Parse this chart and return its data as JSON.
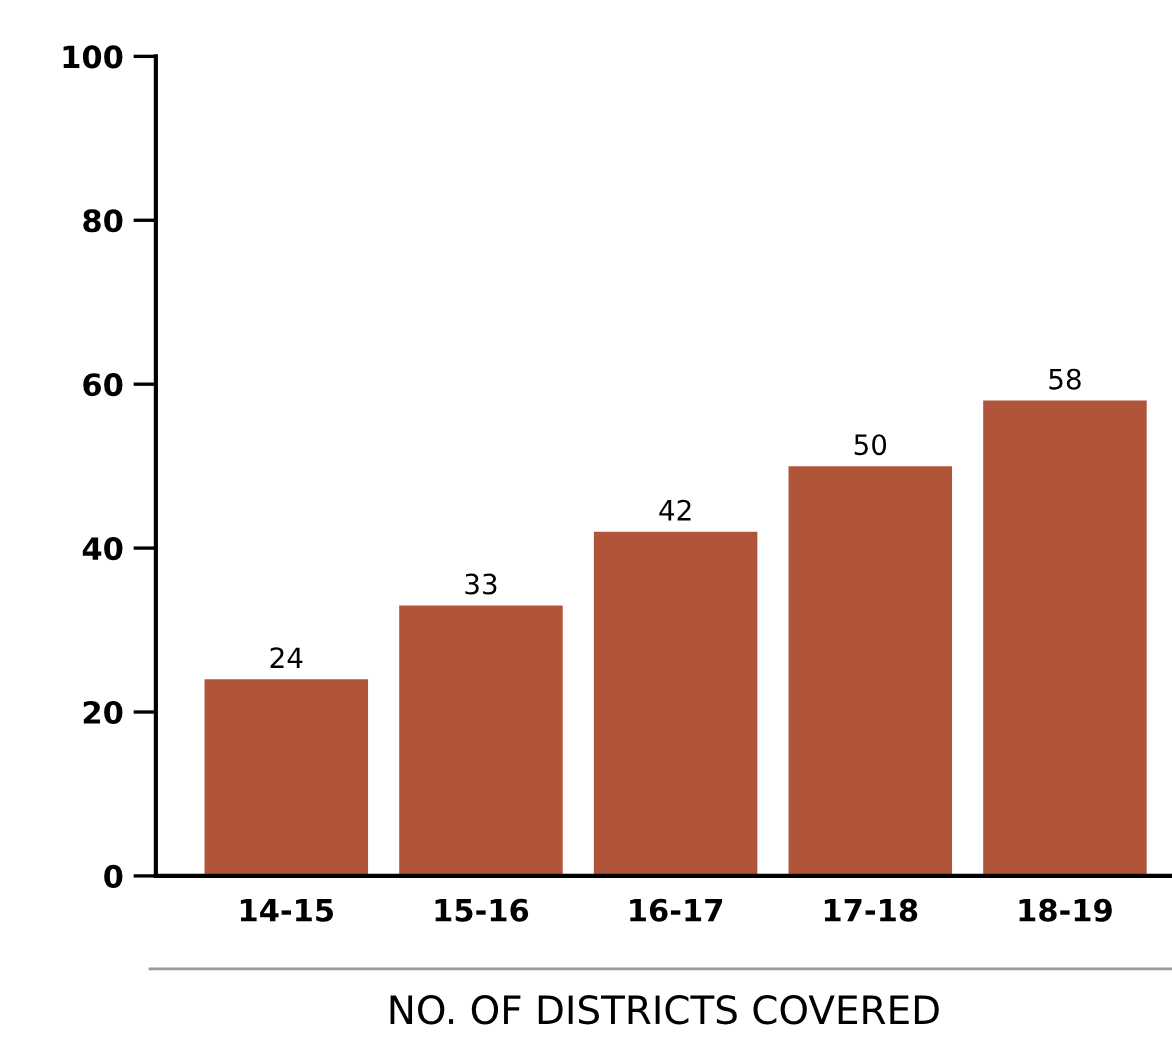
{
  "chart_data": {
    "type": "bar",
    "xlabel": "NO. OF DISTRICTS COVERED",
    "categories": [
      "14-15",
      "15-16",
      "16-17",
      "17-18",
      "18-19"
    ],
    "values": [
      24,
      33,
      42,
      50,
      58
    ],
    "color": "#b0553a",
    "ylim": [
      0,
      100
    ],
    "yticks": [
      0,
      20,
      40,
      60,
      80,
      100
    ],
    "grid": false,
    "data_labels": true
  }
}
